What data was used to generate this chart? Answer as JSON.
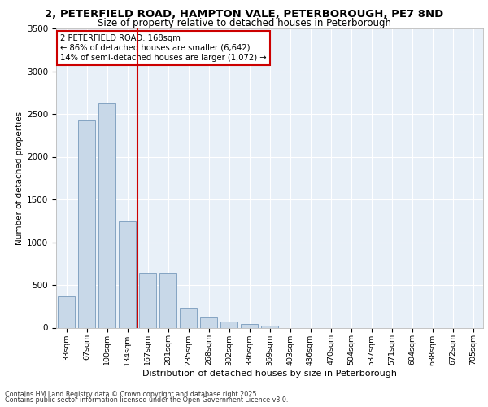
{
  "title_line1": "2, PETERFIELD ROAD, HAMPTON VALE, PETERBOROUGH, PE7 8ND",
  "title_line2": "Size of property relative to detached houses in Peterborough",
  "xlabel": "Distribution of detached houses by size in Peterborough",
  "ylabel": "Number of detached properties",
  "categories": [
    "33sqm",
    "67sqm",
    "100sqm",
    "134sqm",
    "167sqm",
    "201sqm",
    "235sqm",
    "268sqm",
    "302sqm",
    "336sqm",
    "369sqm",
    "403sqm",
    "436sqm",
    "470sqm",
    "504sqm",
    "537sqm",
    "571sqm",
    "604sqm",
    "638sqm",
    "672sqm",
    "705sqm"
  ],
  "values": [
    370,
    2420,
    2620,
    1240,
    640,
    640,
    230,
    120,
    70,
    40,
    20,
    0,
    0,
    0,
    0,
    0,
    0,
    0,
    0,
    0,
    0
  ],
  "bar_color": "#c8d8e8",
  "bar_edge_color": "#7799bb",
  "vline_color": "#cc0000",
  "annotation_title": "2 PETERFIELD ROAD: 168sqm",
  "annotation_line2": "← 86% of detached houses are smaller (6,642)",
  "annotation_line3": "14% of semi-detached houses are larger (1,072) →",
  "annotation_box_color": "#cc0000",
  "annotation_bg": "#ffffff",
  "ylim_max": 3500,
  "yticks": [
    0,
    500,
    1000,
    1500,
    2000,
    2500,
    3000,
    3500
  ],
  "plot_bg": "#e8f0f8",
  "footer_line1": "Contains HM Land Registry data © Crown copyright and database right 2025.",
  "footer_line2": "Contains public sector information licensed under the Open Government Licence v3.0."
}
